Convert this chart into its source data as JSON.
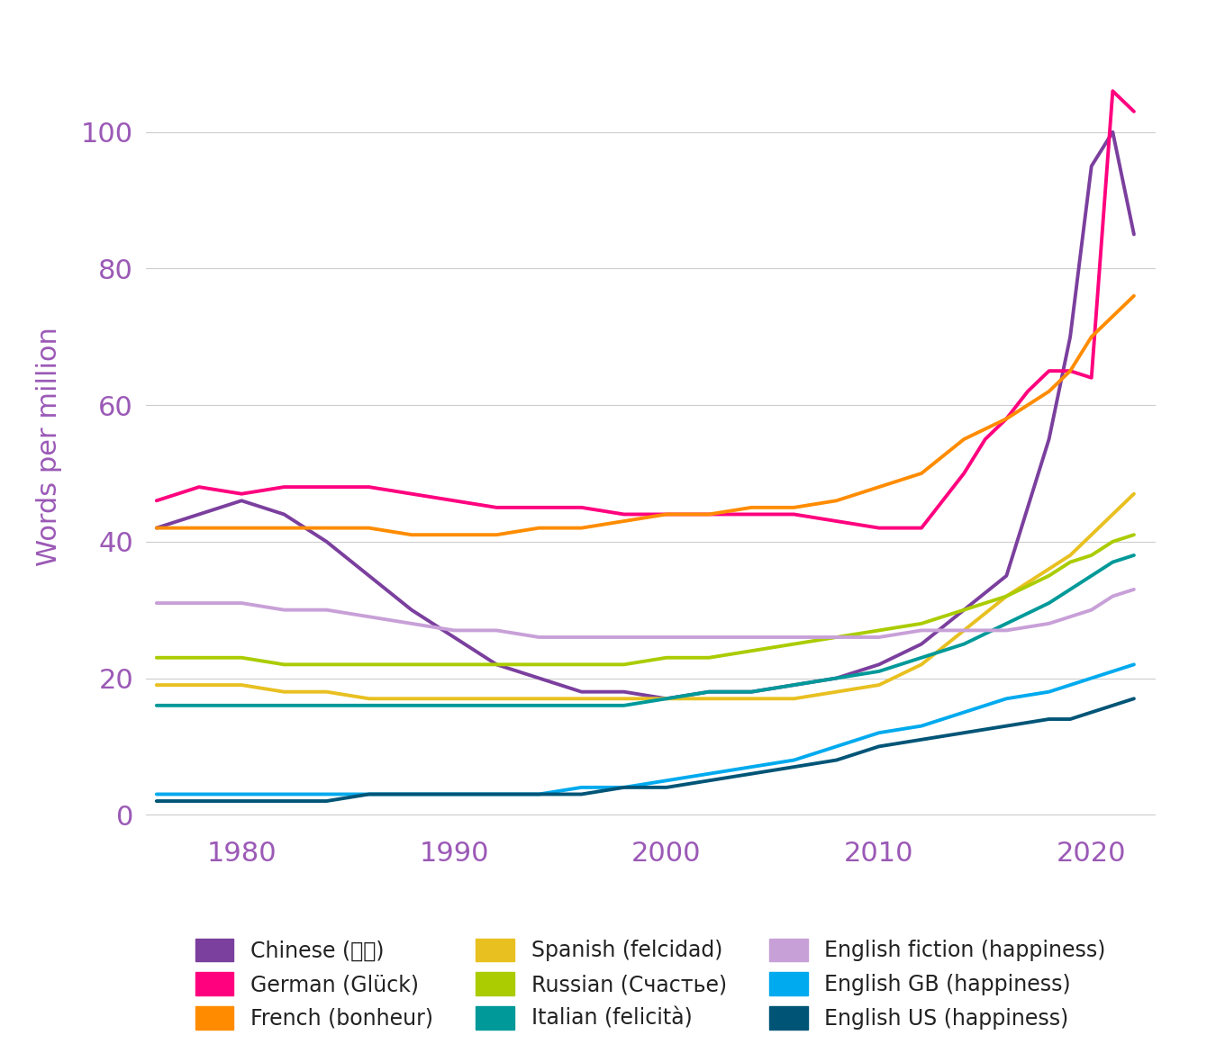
{
  "ylabel": "Words per million",
  "xlim": [
    1975.5,
    2023
  ],
  "ylim": [
    -2,
    110
  ],
  "yticks": [
    0,
    20,
    40,
    60,
    80,
    100
  ],
  "xticks": [
    1980,
    1990,
    2000,
    2010,
    2020
  ],
  "series": {
    "Chinese": {
      "color": "#7B3F9E",
      "years": [
        1976,
        1978,
        1980,
        1982,
        1984,
        1986,
        1988,
        1990,
        1992,
        1994,
        1996,
        1998,
        2000,
        2002,
        2004,
        2006,
        2008,
        2010,
        2012,
        2014,
        2016,
        2018,
        2019,
        2020,
        2021,
        2022
      ],
      "values": [
        42,
        44,
        46,
        44,
        40,
        35,
        30,
        26,
        22,
        20,
        18,
        18,
        17,
        18,
        18,
        19,
        20,
        22,
        25,
        30,
        35,
        55,
        70,
        95,
        100,
        85
      ]
    },
    "German": {
      "color": "#FF007F",
      "years": [
        1976,
        1978,
        1980,
        1982,
        1984,
        1986,
        1988,
        1990,
        1992,
        1994,
        1996,
        1998,
        2000,
        2002,
        2004,
        2006,
        2008,
        2010,
        2012,
        2014,
        2015,
        2016,
        2017,
        2018,
        2019,
        2020,
        2021,
        2022
      ],
      "values": [
        46,
        48,
        47,
        48,
        48,
        48,
        47,
        46,
        45,
        45,
        45,
        44,
        44,
        44,
        44,
        44,
        43,
        42,
        42,
        50,
        55,
        58,
        62,
        65,
        65,
        64,
        106,
        103
      ]
    },
    "French": {
      "color": "#FF8C00",
      "years": [
        1976,
        1978,
        1980,
        1982,
        1984,
        1986,
        1988,
        1990,
        1992,
        1994,
        1996,
        1998,
        2000,
        2002,
        2004,
        2006,
        2008,
        2010,
        2012,
        2014,
        2016,
        2018,
        2019,
        2020,
        2021,
        2022
      ],
      "values": [
        42,
        42,
        42,
        42,
        42,
        42,
        41,
        41,
        41,
        42,
        42,
        43,
        44,
        44,
        45,
        45,
        46,
        48,
        50,
        55,
        58,
        62,
        65,
        70,
        73,
        76
      ]
    },
    "Spanish": {
      "color": "#E8C020",
      "years": [
        1976,
        1978,
        1980,
        1982,
        1984,
        1986,
        1988,
        1990,
        1992,
        1994,
        1996,
        1998,
        2000,
        2002,
        2004,
        2006,
        2008,
        2010,
        2012,
        2014,
        2016,
        2018,
        2019,
        2020,
        2021,
        2022
      ],
      "values": [
        19,
        19,
        19,
        18,
        18,
        17,
        17,
        17,
        17,
        17,
        17,
        17,
        17,
        17,
        17,
        17,
        18,
        19,
        22,
        27,
        32,
        36,
        38,
        41,
        44,
        47
      ]
    },
    "Russian": {
      "color": "#AACC00",
      "years": [
        1976,
        1978,
        1980,
        1982,
        1984,
        1986,
        1988,
        1990,
        1992,
        1994,
        1996,
        1998,
        2000,
        2002,
        2004,
        2006,
        2008,
        2010,
        2012,
        2014,
        2016,
        2018,
        2019,
        2020,
        2021,
        2022
      ],
      "values": [
        23,
        23,
        23,
        22,
        22,
        22,
        22,
        22,
        22,
        22,
        22,
        22,
        23,
        23,
        24,
        25,
        26,
        27,
        28,
        30,
        32,
        35,
        37,
        38,
        40,
        41
      ]
    },
    "Italian": {
      "color": "#009999",
      "years": [
        1976,
        1978,
        1980,
        1982,
        1984,
        1986,
        1988,
        1990,
        1992,
        1994,
        1996,
        1998,
        2000,
        2002,
        2004,
        2006,
        2008,
        2010,
        2012,
        2014,
        2016,
        2018,
        2019,
        2020,
        2021,
        2022
      ],
      "values": [
        16,
        16,
        16,
        16,
        16,
        16,
        16,
        16,
        16,
        16,
        16,
        16,
        17,
        18,
        18,
        19,
        20,
        21,
        23,
        25,
        28,
        31,
        33,
        35,
        37,
        38
      ]
    },
    "English fiction": {
      "color": "#C8A0D8",
      "years": [
        1976,
        1978,
        1980,
        1982,
        1984,
        1986,
        1988,
        1990,
        1992,
        1994,
        1996,
        1998,
        2000,
        2002,
        2004,
        2006,
        2008,
        2010,
        2012,
        2014,
        2016,
        2018,
        2019,
        2020,
        2021,
        2022
      ],
      "values": [
        31,
        31,
        31,
        30,
        30,
        29,
        28,
        27,
        27,
        26,
        26,
        26,
        26,
        26,
        26,
        26,
        26,
        26,
        27,
        27,
        27,
        28,
        29,
        30,
        32,
        33
      ]
    },
    "English GB": {
      "color": "#00AAEE",
      "years": [
        1976,
        1978,
        1980,
        1982,
        1984,
        1986,
        1988,
        1990,
        1992,
        1994,
        1996,
        1998,
        2000,
        2002,
        2004,
        2006,
        2008,
        2010,
        2012,
        2014,
        2016,
        2018,
        2019,
        2020,
        2021,
        2022
      ],
      "values": [
        3,
        3,
        3,
        3,
        3,
        3,
        3,
        3,
        3,
        3,
        4,
        4,
        5,
        6,
        7,
        8,
        10,
        12,
        13,
        15,
        17,
        18,
        19,
        20,
        21,
        22
      ]
    },
    "English US": {
      "color": "#005577",
      "years": [
        1976,
        1978,
        1980,
        1982,
        1984,
        1986,
        1988,
        1990,
        1992,
        1994,
        1996,
        1998,
        2000,
        2002,
        2004,
        2006,
        2008,
        2010,
        2012,
        2014,
        2016,
        2018,
        2019,
        2020,
        2021,
        2022
      ],
      "values": [
        2,
        2,
        2,
        2,
        2,
        3,
        3,
        3,
        3,
        3,
        3,
        4,
        4,
        5,
        6,
        7,
        8,
        10,
        11,
        12,
        13,
        14,
        14,
        15,
        16,
        17
      ]
    }
  },
  "legend": [
    {
      "label": "Chinese (幸福)",
      "color": "#7B3F9E"
    },
    {
      "label": "German (Glück)",
      "color": "#FF007F"
    },
    {
      "label": "French (bonheur)",
      "color": "#FF8C00"
    },
    {
      "label": "Spanish (felcidad)",
      "color": "#E8C020"
    },
    {
      "label": "Russian (Счастье)",
      "color": "#AACC00"
    },
    {
      "label": "Italian (felicità)",
      "color": "#009999"
    },
    {
      "label": "English fiction (happiness)",
      "color": "#C8A0D8"
    },
    {
      "label": "English GB (happiness)",
      "color": "#00AAEE"
    },
    {
      "label": "English US (happiness)",
      "color": "#005577"
    }
  ],
  "axis_color": "#9B59B6",
  "grid_color": "#CCCCCC",
  "line_width": 2.8
}
